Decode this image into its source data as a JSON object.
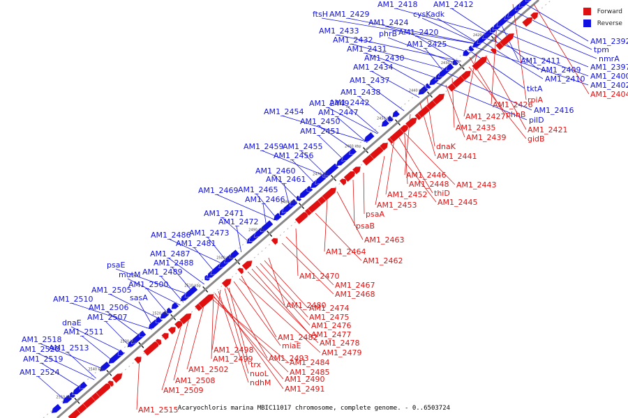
{
  "legend": [
    {
      "label": "Forward",
      "color": "#e01010"
    },
    {
      "label": "Reverse",
      "color": "#1010e0"
    }
  ],
  "caption": "Acaryochloris marina MBIC11017 chromosome, complete genome. - 0..6503724",
  "colors": {
    "forward": "#e01010",
    "reverse": "#1010e0",
    "backbone": "#888888"
  },
  "ticks": [
    "2420 kbp",
    "2430 kbp",
    "2440 kbp",
    "2450 kbp",
    "2460 kbp",
    "2470 kbp",
    "2480 kbp",
    "2490 kbp",
    "2500 kbp",
    "2510 kbp",
    "2520 kbp",
    "2530 kbp",
    "2540 kbp",
    "2550 kbp",
    "2560 kbp"
  ],
  "reverse_labels": [
    "AM1_2418",
    "AM1_2412",
    "ftsH",
    "AM1_2429",
    "cysK",
    "adk",
    "AM1_2424",
    "AM1_2433",
    "phrB",
    "AM1_2420",
    "AM1_2432",
    "AM1_2425",
    "AM1_2431",
    "AM1_2430",
    "AM1_2434",
    "AM1_2437",
    "AM1_2438",
    "AM1_2449",
    "AM1_2442",
    "AM1_2447",
    "AM1_2454",
    "AM1_2450",
    "AM1_2451",
    "AM1_2459",
    "AM1_2455",
    "AM1_2456",
    "AM1_2460",
    "AM1_2461",
    "AM1_2469",
    "AM1_2465",
    "AM1_2466",
    "AM1_2471",
    "AM1_2472",
    "AM1_2473",
    "AM1_2486",
    "AM1_2481",
    "AM1_2487",
    "AM1_2488",
    "psaE",
    "AM1_2489",
    "mutM",
    "AM1_2500",
    "AM1_2505",
    "sasA",
    "AM1_2510",
    "AM1_2506",
    "AM1_2507",
    "dnaE",
    "AM1_2511",
    "AM1_2518",
    "AM1_2513",
    "AM1_2520",
    "AM1_2519",
    "AM1_2524",
    "AM1_2392",
    "tpm",
    "nmrA",
    "AM1_2397",
    "AM1_2411",
    "AM1_2409",
    "AM1_2400",
    "AM1_2410",
    "AM1_2402",
    "tktA",
    "AM1_2416",
    "pilD"
  ],
  "forward_labels": [
    "AM1_2404",
    "rpiA",
    "AM1_2426",
    "AM1_2427",
    "phhB",
    "AM1_2421",
    "gidB",
    "AM1_2435",
    "AM1_2439",
    "dnaK",
    "AM1_2441",
    "AM1_2446",
    "AM1_2448",
    "AM1_2443",
    "thiD",
    "AM1_2452",
    "AM1_2445",
    "AM1_2453",
    "psaA",
    "psaB",
    "AM1_2463",
    "AM1_2464",
    "AM1_2462",
    "AM1_2470",
    "AM1_2467",
    "AM1_2468",
    "AM1_2480",
    "AM1_2474",
    "AM1_2475",
    "AM1_2476",
    "AM1_2477",
    "AM1_2482",
    "AM1_2478",
    "miaE",
    "AM1_2479",
    "AM1_2498",
    "AM1_2493",
    "AM1_2499",
    "trx",
    "AM1_2484",
    "AM1_2485",
    "AM1_2502",
    "nuoL",
    "AM1_2490",
    "ndhM",
    "AM1_2491",
    "AM1_2508",
    "AM1_2509",
    "AM1_2515"
  ]
}
